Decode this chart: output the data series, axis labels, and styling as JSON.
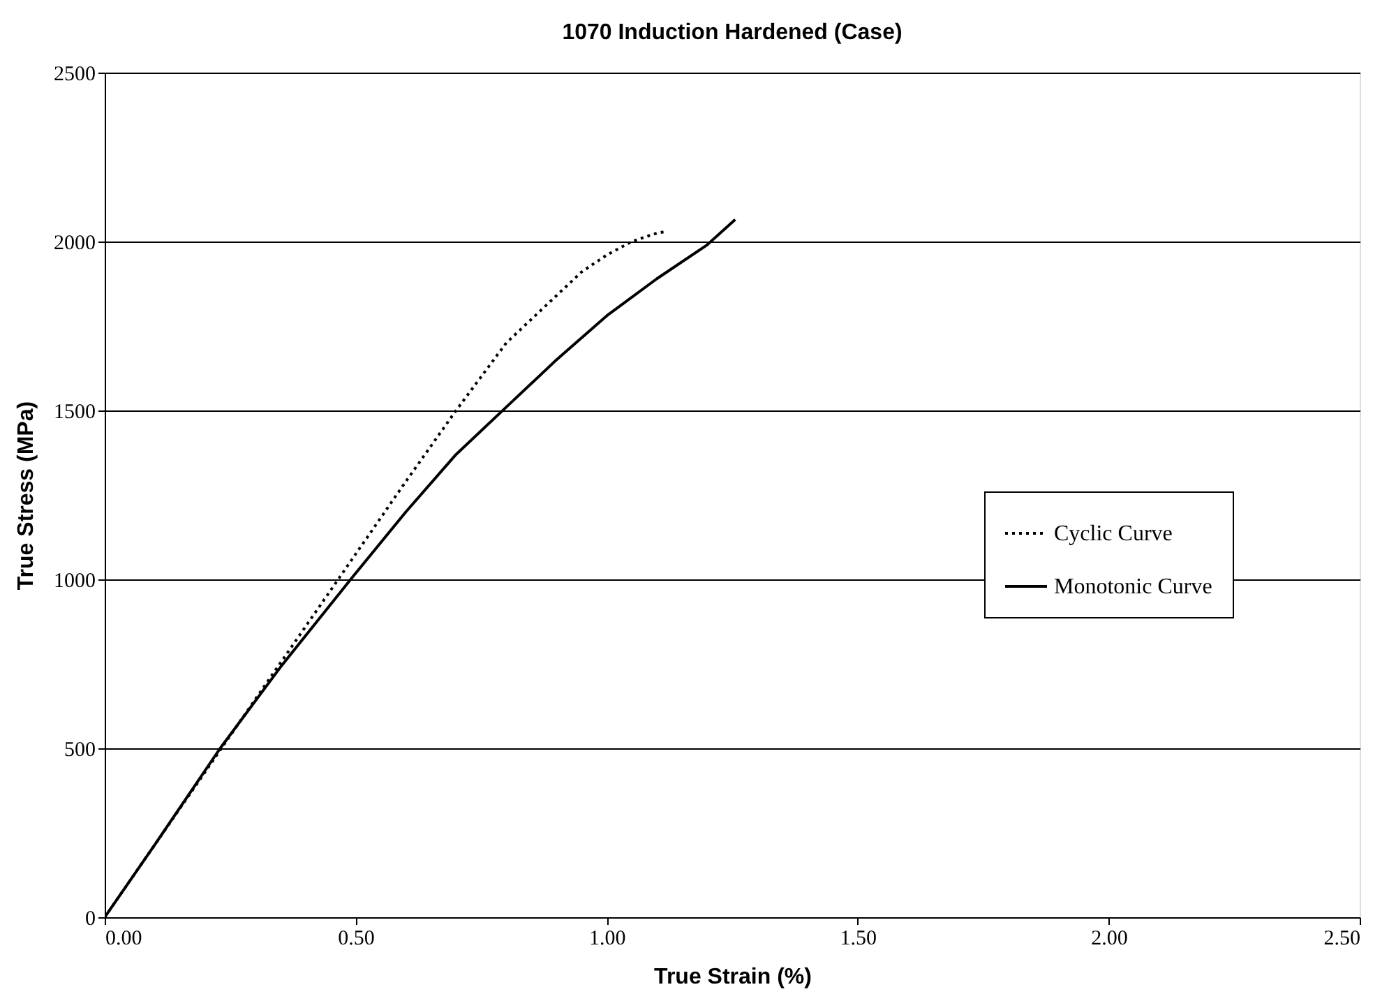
{
  "chart_data": {
    "type": "line",
    "title": "1070 Induction Hardened (Case)",
    "xlabel": "True Strain (%)",
    "ylabel": "True Stress (MPa)",
    "xlim": [
      0,
      2.5
    ],
    "ylim": [
      0,
      2500
    ],
    "xticks": [
      {
        "value": 0,
        "label": "0.00"
      },
      {
        "value": 0.5,
        "label": "0.50"
      },
      {
        "value": 1,
        "label": "1.00"
      },
      {
        "value": 1.5,
        "label": "1.50"
      },
      {
        "value": 2,
        "label": "2.00"
      },
      {
        "value": 2.5,
        "label": "2.50"
      }
    ],
    "yticks": [
      0,
      500,
      1000,
      1500,
      2000,
      2500
    ],
    "grid": "y",
    "legend": "right",
    "marker": "none",
    "series": [
      {
        "name": "Cyclic Curve",
        "color": "#000000",
        "line_style": "dotted",
        "x": [
          0,
          0.1,
          0.2,
          0.3,
          0.4,
          0.5,
          0.6,
          0.7,
          0.8,
          0.9,
          0.95,
          1.0,
          1.05,
          1.1,
          1.12
        ],
        "values": [
          0,
          215,
          430,
          645,
          860,
          1075,
          1290,
          1500,
          1700,
          1840,
          1910,
          1960,
          2000,
          2025,
          2030
        ]
      },
      {
        "name": "Monotonic Curve",
        "color": "#000000",
        "line_style": "solid",
        "x": [
          0,
          0.1,
          0.23,
          0.35,
          0.49,
          0.6,
          0.7,
          0.8,
          0.9,
          1.0,
          1.1,
          1.2,
          1.256
        ],
        "values": [
          0,
          215,
          500,
          740,
          1000,
          1200,
          1370,
          1510,
          1650,
          1780,
          1890,
          1990,
          2065
        ]
      }
    ]
  }
}
